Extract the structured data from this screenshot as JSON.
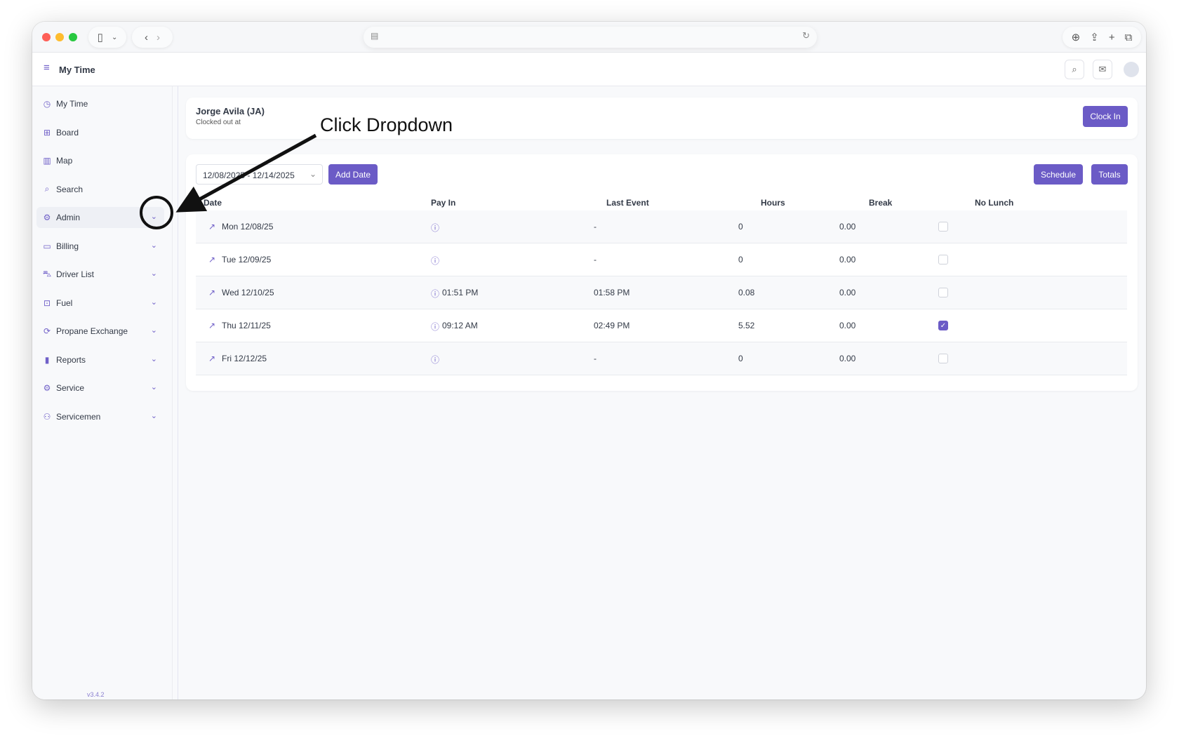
{
  "app": {
    "title": "My Time",
    "version": "v3.4.2",
    "accent": "#6b5bc6"
  },
  "sidebar": {
    "items": [
      {
        "label": "My Time",
        "icon": "clock-icon",
        "chevron": false
      },
      {
        "label": "Board",
        "icon": "grid-icon",
        "chevron": false
      },
      {
        "label": "Map",
        "icon": "map-icon",
        "chevron": false
      },
      {
        "label": "Search",
        "icon": "search-icon",
        "chevron": false
      },
      {
        "label": "Admin",
        "icon": "gear-icon",
        "chevron": true,
        "active": true
      },
      {
        "label": "Billing",
        "icon": "wallet-icon",
        "chevron": true
      },
      {
        "label": "Driver List",
        "icon": "car-icon",
        "chevron": true
      },
      {
        "label": "Fuel",
        "icon": "folder-plus-icon",
        "chevron": true
      },
      {
        "label": "Propane Exchange",
        "icon": "refresh-icon",
        "chevron": true
      },
      {
        "label": "Reports",
        "icon": "bar-chart-icon",
        "chevron": true
      },
      {
        "label": "Service",
        "icon": "gear-icon",
        "chevron": true
      },
      {
        "label": "Servicemen",
        "icon": "users-icon",
        "chevron": true
      }
    ]
  },
  "employee": {
    "name": "Jorge Avila (JA)",
    "status": "Clocked out at",
    "clock_in_label": "Clock In"
  },
  "toolbar": {
    "date_range": "12/08/2025 - 12/14/2025",
    "add_date": "Add Date",
    "schedule": "Schedule",
    "totals": "Totals"
  },
  "table": {
    "headers": [
      "Date",
      "Pay In",
      "Last Event",
      "Hours",
      "Break",
      "No Lunch"
    ],
    "rows": [
      {
        "date": "Mon 12/08/25",
        "pay_in": "",
        "last_event": "-",
        "hours": "0",
        "break": "0.00",
        "no_lunch": false
      },
      {
        "date": "Tue 12/09/25",
        "pay_in": "",
        "last_event": "-",
        "hours": "0",
        "break": "0.00",
        "no_lunch": false
      },
      {
        "date": "Wed 12/10/25",
        "pay_in": "01:51 PM",
        "last_event": "01:58 PM",
        "hours": "0.08",
        "break": "0.00",
        "no_lunch": false
      },
      {
        "date": "Thu 12/11/25",
        "pay_in": "09:12 AM",
        "last_event": "02:49 PM",
        "hours": "5.52",
        "break": "0.00",
        "no_lunch": true
      },
      {
        "date": "Fri 12/12/25",
        "pay_in": "",
        "last_event": "-",
        "hours": "0",
        "break": "0.00",
        "no_lunch": false
      }
    ]
  },
  "annotation": {
    "text": "Click Dropdown"
  }
}
